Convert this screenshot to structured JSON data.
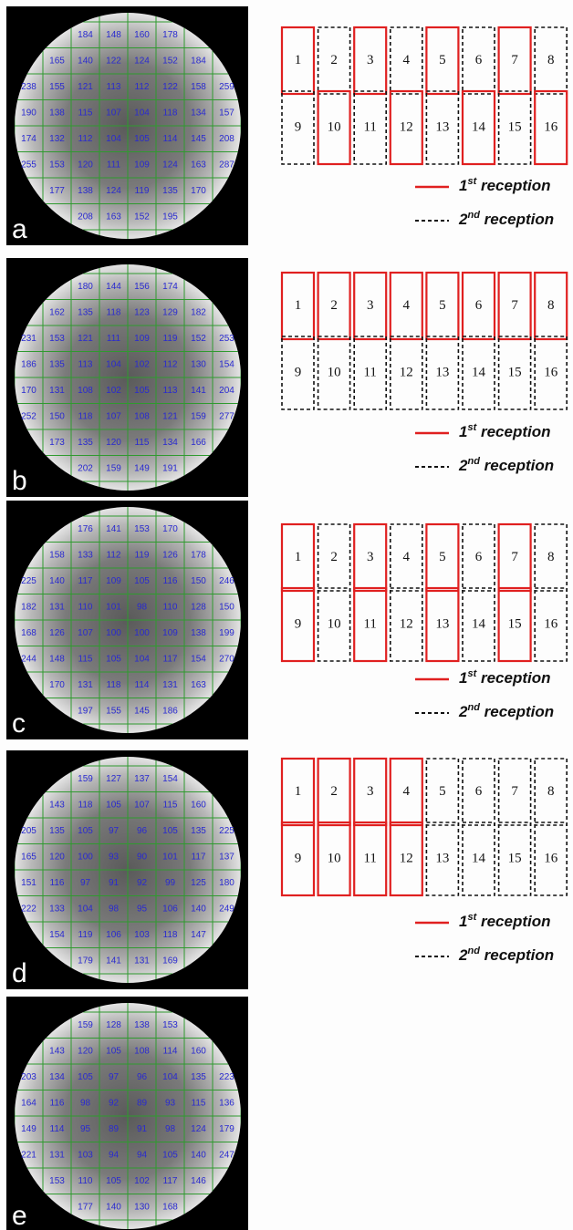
{
  "panels": [
    {
      "label": "a",
      "grid": [
        [
          "184",
          "148",
          "160",
          "178"
        ],
        [
          "165",
          "140",
          "122",
          "124",
          "152",
          "184"
        ],
        [
          "238",
          "155",
          "121",
          "113",
          "112",
          "122",
          "158",
          "259"
        ],
        [
          "190",
          "138",
          "115",
          "107",
          "104",
          "118",
          "134",
          "157"
        ],
        [
          "174",
          "132",
          "112",
          "104",
          "105",
          "114",
          "145",
          "208"
        ],
        [
          "255",
          "153",
          "120",
          "111",
          "109",
          "124",
          "163",
          "287"
        ],
        [
          "177",
          "138",
          "124",
          "119",
          "135",
          "170"
        ],
        [
          "208",
          "163",
          "152",
          "195"
        ]
      ],
      "diagram": {
        "coils": [
          {
            "label": "1",
            "style": "solid"
          },
          {
            "label": "2",
            "style": "dashed"
          },
          {
            "label": "3",
            "style": "solid"
          },
          {
            "label": "4",
            "style": "dashed"
          },
          {
            "label": "5",
            "style": "solid"
          },
          {
            "label": "6",
            "style": "dashed"
          },
          {
            "label": "7",
            "style": "solid"
          },
          {
            "label": "8",
            "style": "dashed"
          },
          {
            "label": "9",
            "style": "dashed"
          },
          {
            "label": "10",
            "style": "solid"
          },
          {
            "label": "11",
            "style": "dashed"
          },
          {
            "label": "12",
            "style": "solid"
          },
          {
            "label": "13",
            "style": "dashed"
          },
          {
            "label": "14",
            "style": "solid"
          },
          {
            "label": "15",
            "style": "dashed"
          },
          {
            "label": "16",
            "style": "solid"
          }
        ],
        "legend": [
          {
            "style": "solid",
            "ordinal": "1",
            "suffix": "st",
            "text": " reception"
          },
          {
            "style": "dashed",
            "ordinal": "2",
            "suffix": "nd",
            "text": " reception"
          }
        ]
      }
    },
    {
      "label": "b",
      "grid": [
        [
          "180",
          "144",
          "156",
          "174"
        ],
        [
          "162",
          "135",
          "118",
          "123",
          "129",
          "182"
        ],
        [
          "231",
          "153",
          "121",
          "111",
          "109",
          "119",
          "152",
          "253"
        ],
        [
          "186",
          "135",
          "113",
          "104",
          "102",
          "112",
          "130",
          "154"
        ],
        [
          "170",
          "131",
          "108",
          "102",
          "105",
          "113",
          "141",
          "204"
        ],
        [
          "252",
          "150",
          "118",
          "107",
          "108",
          "121",
          "159",
          "277"
        ],
        [
          "173",
          "135",
          "120",
          "115",
          "134",
          "166"
        ],
        [
          "202",
          "159",
          "149",
          "191"
        ]
      ],
      "diagram": {
        "coils": [
          {
            "label": "1",
            "style": "solid"
          },
          {
            "label": "2",
            "style": "solid"
          },
          {
            "label": "3",
            "style": "solid"
          },
          {
            "label": "4",
            "style": "solid"
          },
          {
            "label": "5",
            "style": "solid"
          },
          {
            "label": "6",
            "style": "solid"
          },
          {
            "label": "7",
            "style": "solid"
          },
          {
            "label": "8",
            "style": "solid"
          },
          {
            "label": "9",
            "style": "dashed"
          },
          {
            "label": "10",
            "style": "dashed"
          },
          {
            "label": "11",
            "style": "dashed"
          },
          {
            "label": "12",
            "style": "dashed"
          },
          {
            "label": "13",
            "style": "dashed"
          },
          {
            "label": "14",
            "style": "dashed"
          },
          {
            "label": "15",
            "style": "dashed"
          },
          {
            "label": "16",
            "style": "dashed"
          }
        ],
        "legend": [
          {
            "style": "solid",
            "ordinal": "1",
            "suffix": "st",
            "text": " reception"
          },
          {
            "style": "dashed",
            "ordinal": "2",
            "suffix": "nd",
            "text": " reception"
          }
        ]
      }
    },
    {
      "label": "c",
      "grid": [
        [
          "176",
          "141",
          "153",
          "170"
        ],
        [
          "158",
          "133",
          "112",
          "119",
          "126",
          "178"
        ],
        [
          "225",
          "140",
          "117",
          "109",
          "105",
          "116",
          "150",
          "246"
        ],
        [
          "182",
          "131",
          "110",
          "101",
          "98",
          "110",
          "128",
          "150"
        ],
        [
          "168",
          "126",
          "107",
          "100",
          "100",
          "109",
          "138",
          "199"
        ],
        [
          "244",
          "148",
          "115",
          "105",
          "104",
          "117",
          "154",
          "270"
        ],
        [
          "170",
          "131",
          "118",
          "114",
          "131",
          "163"
        ],
        [
          "197",
          "155",
          "145",
          "186"
        ]
      ],
      "diagram": {
        "coils": [
          {
            "label": "1",
            "style": "solid"
          },
          {
            "label": "2",
            "style": "dashed"
          },
          {
            "label": "3",
            "style": "solid"
          },
          {
            "label": "4",
            "style": "dashed"
          },
          {
            "label": "5",
            "style": "solid"
          },
          {
            "label": "6",
            "style": "dashed"
          },
          {
            "label": "7",
            "style": "solid"
          },
          {
            "label": "8",
            "style": "dashed"
          },
          {
            "label": "9",
            "style": "solid"
          },
          {
            "label": "10",
            "style": "dashed"
          },
          {
            "label": "11",
            "style": "solid"
          },
          {
            "label": "12",
            "style": "dashed"
          },
          {
            "label": "13",
            "style": "solid"
          },
          {
            "label": "14",
            "style": "dashed"
          },
          {
            "label": "15",
            "style": "solid"
          },
          {
            "label": "16",
            "style": "dashed"
          }
        ],
        "legend": [
          {
            "style": "solid",
            "ordinal": "1",
            "suffix": "st",
            "text": " reception"
          },
          {
            "style": "dashed",
            "ordinal": "2",
            "suffix": "nd",
            "text": " reception"
          }
        ]
      }
    },
    {
      "label": "d",
      "grid": [
        [
          "159",
          "127",
          "137",
          "154"
        ],
        [
          "143",
          "118",
          "105",
          "107",
          "115",
          "160"
        ],
        [
          "205",
          "135",
          "105",
          "97",
          "96",
          "105",
          "135",
          "225"
        ],
        [
          "165",
          "120",
          "100",
          "93",
          "90",
          "101",
          "117",
          "137"
        ],
        [
          "151",
          "116",
          "97",
          "91",
          "92",
          "99",
          "125",
          "180"
        ],
        [
          "222",
          "133",
          "104",
          "98",
          "95",
          "106",
          "140",
          "249"
        ],
        [
          "154",
          "119",
          "106",
          "103",
          "118",
          "147"
        ],
        [
          "179",
          "141",
          "131",
          "169"
        ]
      ],
      "diagram": {
        "coils": [
          {
            "label": "1",
            "style": "solid"
          },
          {
            "label": "2",
            "style": "solid"
          },
          {
            "label": "3",
            "style": "solid"
          },
          {
            "label": "4",
            "style": "solid"
          },
          {
            "label": "5",
            "style": "dashed"
          },
          {
            "label": "6",
            "style": "dashed"
          },
          {
            "label": "7",
            "style": "dashed"
          },
          {
            "label": "8",
            "style": "dashed"
          },
          {
            "label": "9",
            "style": "solid"
          },
          {
            "label": "10",
            "style": "solid"
          },
          {
            "label": "11",
            "style": "solid"
          },
          {
            "label": "12",
            "style": "solid"
          },
          {
            "label": "13",
            "style": "dashed"
          },
          {
            "label": "14",
            "style": "dashed"
          },
          {
            "label": "15",
            "style": "dashed"
          },
          {
            "label": "16",
            "style": "dashed"
          }
        ],
        "legend": [
          {
            "style": "solid",
            "ordinal": "1",
            "suffix": "st",
            "text": " reception"
          },
          {
            "style": "dashed",
            "ordinal": "2",
            "suffix": "nd",
            "text": " reception"
          }
        ]
      }
    },
    {
      "label": "e",
      "grid": [
        [
          "159",
          "128",
          "138",
          "153"
        ],
        [
          "143",
          "120",
          "105",
          "108",
          "114",
          "160"
        ],
        [
          "203",
          "134",
          "105",
          "97",
          "96",
          "104",
          "135",
          "223"
        ],
        [
          "164",
          "116",
          "98",
          "92",
          "89",
          "93",
          "115",
          "136"
        ],
        [
          "149",
          "114",
          "95",
          "89",
          "91",
          "98",
          "124",
          "179"
        ],
        [
          "221",
          "131",
          "103",
          "94",
          "94",
          "105",
          "140",
          "247"
        ],
        [
          "153",
          "110",
          "105",
          "102",
          "117",
          "146"
        ],
        [
          "177",
          "140",
          "130",
          "168"
        ]
      ]
    }
  ]
}
